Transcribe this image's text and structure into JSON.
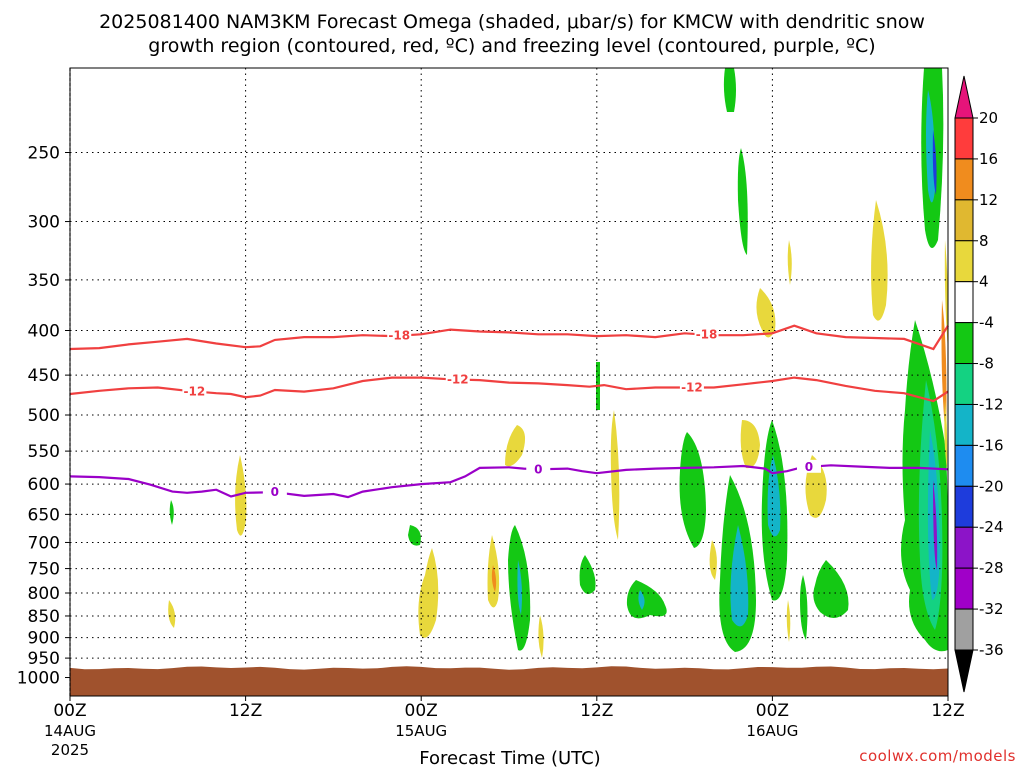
{
  "title": {
    "line1": "2025081400 NAM3KM Forecast Omega (shaded, μbar/s) for KMCW with dendritic snow",
    "line2": "growth region (contoured, red, ºC) and freezing level (contoured, purple, ºC)"
  },
  "credit": "coolwx.com/models",
  "colors": {
    "dendritic": "#f04040",
    "freezing": "#9a00c8",
    "ground": "#a0522d"
  },
  "chart_data": {
    "type": "heatmap",
    "xlabel": "Forecast Time (UTC)",
    "x_range_hours": [
      0,
      60
    ],
    "x_ticks": [
      {
        "hour": 0,
        "label": "00Z",
        "sub1": "14AUG",
        "sub2": "2025"
      },
      {
        "hour": 12,
        "label": "12Z",
        "sub1": "",
        "sub2": ""
      },
      {
        "hour": 24,
        "label": "00Z",
        "sub1": "15AUG",
        "sub2": ""
      },
      {
        "hour": 36,
        "label": "12Z",
        "sub1": "",
        "sub2": ""
      },
      {
        "hour": 48,
        "label": "00Z",
        "sub1": "16AUG",
        "sub2": ""
      },
      {
        "hour": 60,
        "label": "12Z",
        "sub1": "",
        "sub2": ""
      }
    ],
    "y_axis": "pressure (hPa), inverted log scale",
    "y_range_hpa": [
      200,
      1050
    ],
    "y_ticks": [
      250,
      300,
      350,
      400,
      450,
      500,
      550,
      600,
      650,
      700,
      750,
      800,
      850,
      900,
      950,
      1000
    ],
    "ground_top_hpa": 975,
    "colorbar": {
      "labels": [
        "20",
        "16",
        "12",
        "8",
        "4",
        "-4",
        "-8",
        "-12",
        "-16",
        "-20",
        "-24",
        "-28",
        "-32",
        "-36"
      ],
      "colors": [
        "#ff3c3c",
        "#f08c1e",
        "#e0b830",
        "#e8d83c",
        "#ffffff",
        "#14c814",
        "#14d282",
        "#14b4c8",
        "#1e8cf0",
        "#1e3cdc",
        "#8c14c8",
        "#a000c8",
        "#a0a0a0"
      ],
      "over_color": "#e6147a",
      "under_color": "#000000"
    },
    "contours": [
      {
        "kind": "dendritic",
        "label": "-18",
        "label_hours": [
          22.5,
          43.5
        ],
        "points": [
          [
            0,
            420
          ],
          [
            2,
            419
          ],
          [
            4,
            415
          ],
          [
            6,
            412
          ],
          [
            8,
            409
          ],
          [
            10,
            414
          ],
          [
            12,
            418
          ],
          [
            13,
            417
          ],
          [
            14,
            410
          ],
          [
            16,
            407
          ],
          [
            18,
            407
          ],
          [
            20,
            405
          ],
          [
            22,
            406
          ],
          [
            24,
            404
          ],
          [
            26,
            399
          ],
          [
            28,
            401
          ],
          [
            30,
            402
          ],
          [
            32,
            404
          ],
          [
            34,
            404
          ],
          [
            36,
            406
          ],
          [
            38,
            405
          ],
          [
            40,
            407
          ],
          [
            42,
            403
          ],
          [
            44,
            405
          ],
          [
            46,
            405
          ],
          [
            48,
            403
          ],
          [
            49.5,
            395
          ],
          [
            51,
            403
          ],
          [
            53,
            407
          ],
          [
            55,
            408
          ],
          [
            57,
            409
          ],
          [
            59,
            420
          ],
          [
            60,
            395
          ]
        ]
      },
      {
        "kind": "dendritic",
        "label": "-12",
        "label_hours": [
          8.5,
          26.5,
          42.5
        ],
        "points": [
          [
            0,
            473
          ],
          [
            2,
            469
          ],
          [
            4,
            466
          ],
          [
            6,
            465
          ],
          [
            8,
            469
          ],
          [
            10,
            472
          ],
          [
            11,
            473
          ],
          [
            12,
            477
          ],
          [
            13,
            475
          ],
          [
            14,
            468
          ],
          [
            16,
            470
          ],
          [
            18,
            466
          ],
          [
            20,
            457
          ],
          [
            22,
            453
          ],
          [
            24,
            453
          ],
          [
            26,
            455
          ],
          [
            28,
            456
          ],
          [
            30,
            459
          ],
          [
            32,
            460
          ],
          [
            34,
            462
          ],
          [
            35.5,
            464
          ],
          [
            36.5,
            462
          ],
          [
            38,
            467
          ],
          [
            40,
            465
          ],
          [
            42,
            465
          ],
          [
            44,
            465
          ],
          [
            46,
            461
          ],
          [
            48,
            457
          ],
          [
            49.5,
            453
          ],
          [
            51,
            456
          ],
          [
            53,
            463
          ],
          [
            55,
            469
          ],
          [
            57,
            472
          ],
          [
            59,
            482
          ],
          [
            60,
            470
          ]
        ]
      },
      {
        "kind": "freezing",
        "label": "0",
        "label_hours": [
          14,
          32,
          50.5
        ],
        "points": [
          [
            0,
            588
          ],
          [
            2,
            589
          ],
          [
            4,
            592
          ],
          [
            5.5,
            601
          ],
          [
            7,
            612
          ],
          [
            8,
            614
          ],
          [
            9,
            612
          ],
          [
            10,
            609
          ],
          [
            11,
            620
          ],
          [
            12,
            614
          ],
          [
            14,
            613
          ],
          [
            16,
            619
          ],
          [
            18,
            616
          ],
          [
            19,
            621
          ],
          [
            20,
            612
          ],
          [
            22,
            605
          ],
          [
            24,
            600
          ],
          [
            26,
            597
          ],
          [
            27,
            588
          ],
          [
            28,
            575
          ],
          [
            30,
            574
          ],
          [
            31,
            576
          ],
          [
            32,
            577
          ],
          [
            34,
            576
          ],
          [
            35,
            580
          ],
          [
            36,
            583
          ],
          [
            38,
            578
          ],
          [
            40,
            576
          ],
          [
            42,
            575
          ],
          [
            44,
            574
          ],
          [
            46,
            572
          ],
          [
            47.5,
            576
          ],
          [
            48,
            583
          ],
          [
            49,
            580
          ],
          [
            50,
            574
          ],
          [
            52,
            571
          ],
          [
            54,
            573
          ],
          [
            56,
            575
          ],
          [
            58,
            575
          ],
          [
            60,
            577
          ]
        ]
      }
    ]
  }
}
